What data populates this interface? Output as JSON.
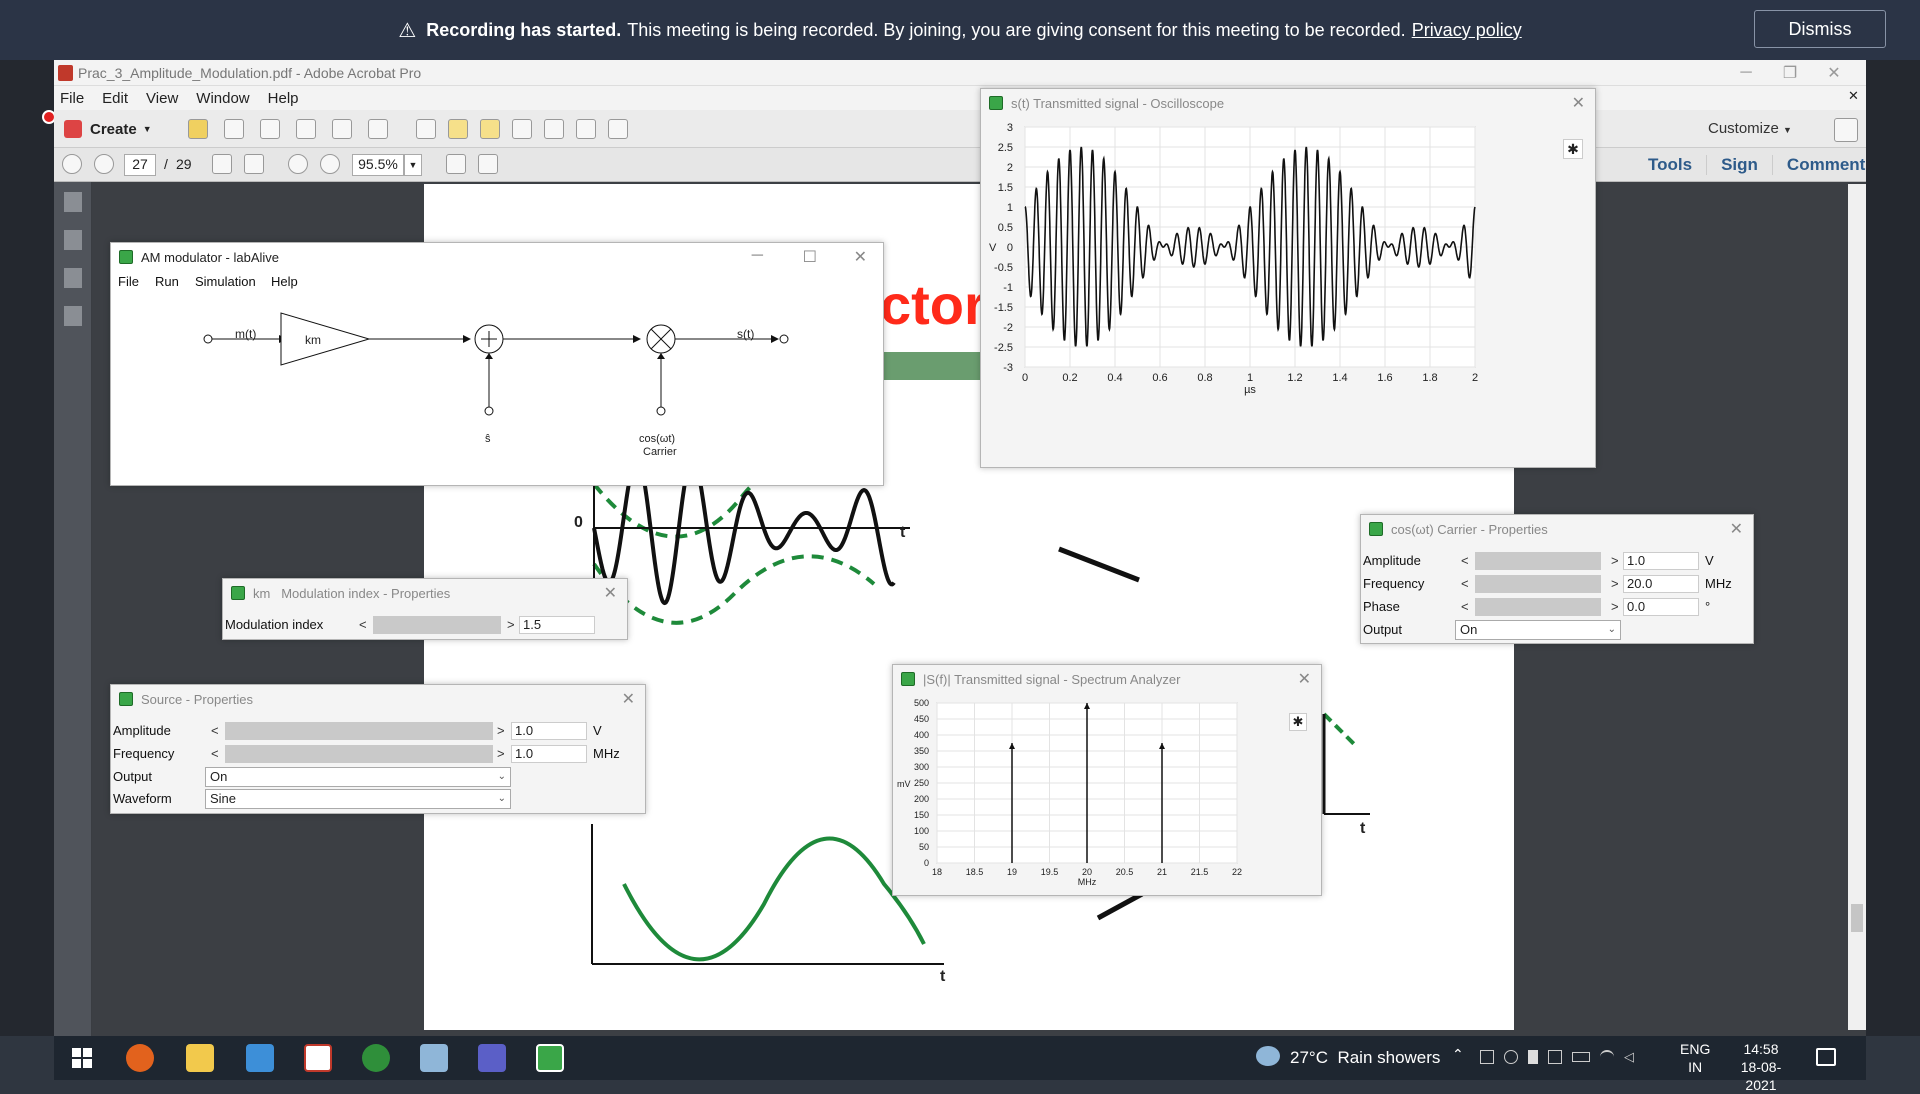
{
  "banner": {
    "bold": "Recording has started.",
    "text": "This meeting is being recorded. By joining, you are giving consent for this meeting to be recorded.",
    "link": "Privacy policy",
    "dismiss": "Dismiss"
  },
  "acrobat": {
    "title": "Prac_3_Amplitude_Modulation.pdf - Adobe Acrobat Pro",
    "menu": [
      "File",
      "Edit",
      "View",
      "Window",
      "Help"
    ],
    "create": "Create",
    "customize": "Customize",
    "page_current": "27",
    "page_sep": "/",
    "page_total": "29",
    "zoom": "95.5%",
    "tabs": [
      "Tools",
      "Sign",
      "Comment"
    ],
    "page_heading_fragment": "ctor",
    "axis_zero": "0",
    "axis_t": "t"
  },
  "am_modulator": {
    "title": "AM modulator - labAlive",
    "menu": [
      "File",
      "Run",
      "Simulation",
      "Help"
    ],
    "m_label": "m(t)",
    "km_label": "km",
    "s_label": "s(t)",
    "offset_label": "ŝ",
    "carrier_label1": "cos(ωt)",
    "carrier_label2": "Carrier"
  },
  "oscilloscope": {
    "title": "s(t) Transmitted signal - Oscilloscope",
    "y_unit": "V",
    "x_unit": "µs",
    "y_ticks": [
      "3",
      "2.5",
      "2",
      "1.5",
      "1",
      "0.5",
      "0",
      "-0.5",
      "-1",
      "-1.5",
      "-2",
      "-2.5",
      "-3"
    ],
    "x_ticks": [
      "0",
      "0.2",
      "0.4",
      "0.6",
      "0.8",
      "1",
      "1.2",
      "1.4",
      "1.6",
      "1.8",
      "2"
    ]
  },
  "km_props": {
    "title_prefix": "km",
    "title": "Modulation index - Properties",
    "label": "Modulation index",
    "value": "1.5"
  },
  "source_props": {
    "title": "Source - Properties",
    "amplitude_label": "Amplitude",
    "amplitude_value": "1.0",
    "amplitude_unit": "V",
    "frequency_label": "Frequency",
    "frequency_value": "1.0",
    "frequency_unit": "MHz",
    "output_label": "Output",
    "output_value": "On",
    "waveform_label": "Waveform",
    "waveform_value": "Sine"
  },
  "carrier_props": {
    "title": "cos(ωt) Carrier - Properties",
    "amplitude_label": "Amplitude",
    "amplitude_value": "1.0",
    "amplitude_unit": "V",
    "frequency_label": "Frequency",
    "frequency_value": "20.0",
    "frequency_unit": "MHz",
    "phase_label": "Phase",
    "phase_value": "0.0",
    "phase_unit": "°",
    "output_label": "Output",
    "output_value": "On"
  },
  "spectrum": {
    "title": "|S(f)| Transmitted signal - Spectrum Analyzer",
    "y_unit": "mV",
    "x_unit": "MHz",
    "y_ticks": [
      "500",
      "450",
      "400",
      "350",
      "300",
      "250",
      "200",
      "150",
      "100",
      "50",
      "0"
    ],
    "x_ticks": [
      "18",
      "18.5",
      "19",
      "19.5",
      "20",
      "20.5",
      "21",
      "21.5",
      "22"
    ]
  },
  "chart_data": [
    {
      "type": "line",
      "title": "s(t) Transmitted signal - Oscilloscope",
      "xlabel": "µs",
      "ylabel": "V",
      "xlim": [
        0,
        2
      ],
      "ylim": [
        -3,
        3
      ],
      "grid": true,
      "series": [
        {
          "modulation_index": 1.5,
          "carrier_mhz": 20,
          "message_mhz": 1,
          "amplitude": 1.0
        }
      ]
    },
    {
      "type": "bar",
      "title": "|S(f)| Transmitted signal - Spectrum Analyzer",
      "xlabel": "MHz",
      "ylabel": "mV",
      "xlim": [
        18,
        22
      ],
      "ylim": [
        0,
        500
      ],
      "grid": true,
      "x": [
        19,
        20,
        21
      ],
      "values": [
        375,
        500,
        375
      ]
    }
  ],
  "taskbar": {
    "weather_temp": "27°C",
    "weather_text": "Rain showers",
    "lang1": "ENG",
    "lang2": "IN",
    "time": "14:58",
    "date": "18-08-2021"
  }
}
